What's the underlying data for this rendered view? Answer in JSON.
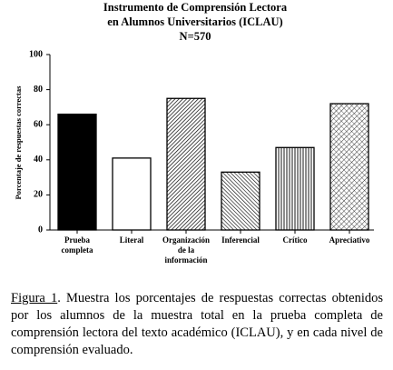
{
  "chart_data": {
    "type": "bar",
    "title": [
      "Instrumento de Comprensión Lectora",
      "en Alumnos Universitarios (ICLAU)",
      "N=570"
    ],
    "y_label": "Porcentaje de respuestas correctas",
    "categories": [
      "Prueba\ncompleta",
      "Literal",
      "Organización\nde la\ninformación",
      "Inferencial",
      "Crítico",
      "Apreciativo"
    ],
    "values": [
      66,
      41,
      75,
      33,
      47,
      72
    ],
    "patterns": [
      "solid-black",
      "white",
      "diag-dense",
      "diag-back",
      "vertical",
      "crosshatch"
    ],
    "ylim": [
      0,
      100
    ],
    "yticks": [
      0,
      20,
      40,
      60,
      80,
      100
    ]
  },
  "caption": {
    "label": "Figura 1",
    "text": ". Muestra los porcentajes de respuestas correctas obtenidos por los alumnos de la muestra total en la prueba completa de comprensión lectora del texto académico (ICLAU), y en cada nivel de comprensión evaluado."
  }
}
